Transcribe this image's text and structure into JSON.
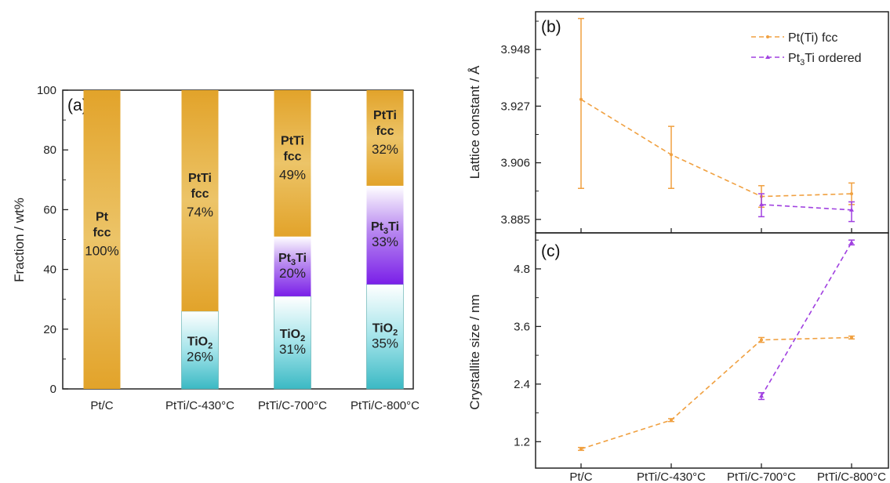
{
  "colors": {
    "pt_fcc": "#e6a82a",
    "pt3ti": "#8a2be2",
    "tio2": "#3bb9c4",
    "orange_line": "#f0a040",
    "purple_line": "#a040e0"
  },
  "chart_data": [
    {
      "panel": "(a)",
      "type": "bar",
      "stacked": true,
      "ylabel": "Fraction / wt%",
      "ylim": [
        0,
        100
      ],
      "yticks": [
        "0",
        "20",
        "40",
        "60",
        "80",
        "100"
      ],
      "categories": [
        "Pt/C",
        "PtTi/C-430°C",
        "PtTi/C-700°C",
        "PtTi/C-800°C"
      ],
      "series": [
        {
          "key": "tio2",
          "label_main": "TiO",
          "label_sub": "2",
          "values": [
            0,
            26,
            31,
            35
          ],
          "labels": [
            "",
            "26%",
            "31%",
            "35%"
          ]
        },
        {
          "key": "pt3ti",
          "label_main": "Pt",
          "label_sub": "3",
          "label_tail": "Ti",
          "values": [
            0,
            0,
            20,
            33
          ],
          "labels": [
            "",
            "",
            "20%",
            "33%"
          ]
        },
        {
          "key": "pt_fcc",
          "values": [
            100,
            74,
            49,
            32
          ],
          "labels": [
            "100%",
            "74%",
            "49%",
            "32%"
          ],
          "names": [
            "Pt fcc",
            "PtTi fcc",
            "PtTi fcc",
            "PtTi fcc"
          ]
        }
      ]
    },
    {
      "panel": "(b)",
      "type": "line",
      "ylabel": "Lattice constant / Å",
      "ylim": [
        3.88,
        3.962
      ],
      "yticks": [
        "3.885",
        "3.906",
        "3.927",
        "3.948"
      ],
      "categories": [
        "Pt/C",
        "PtTi/C-430°C",
        "PtTi/C-700°C",
        "PtTi/C-800°C"
      ],
      "series": [
        {
          "name": "Pt(Ti) fcc",
          "values": [
            3.9295,
            3.909,
            3.8935,
            3.8945
          ],
          "err_low": [
            3.8965,
            3.8965,
            3.8895,
            3.8905
          ],
          "err_high": [
            3.9595,
            3.9195,
            3.8975,
            3.8985
          ]
        },
        {
          "name_main": "Pt",
          "name_sub": "3",
          "name_tail": "Ti ordered",
          "values": [
            null,
            null,
            3.8905,
            3.8885
          ],
          "err_low": [
            null,
            null,
            3.886,
            3.8842
          ],
          "err_high": [
            null,
            null,
            3.8945,
            3.8915
          ]
        }
      ]
    },
    {
      "panel": "(c)",
      "type": "line",
      "ylabel": "Crystallite size / nm",
      "xlabel": "",
      "ylim": [
        0.65,
        5.55
      ],
      "yticks": [
        "1.2",
        "2.4",
        "3.6",
        "4.8"
      ],
      "categories": [
        "Pt/C",
        "PtTi/C-430°C",
        "PtTi/C-700°C",
        "PtTi/C-800°C"
      ],
      "series": [
        {
          "name": "Pt(Ti) fcc",
          "values": [
            1.05,
            1.65,
            3.32,
            3.37
          ],
          "err": [
            0.03,
            0.03,
            0.05,
            0.03
          ]
        },
        {
          "name": "Pt3Ti ordered",
          "values": [
            null,
            null,
            2.15,
            5.35
          ],
          "err": [
            null,
            null,
            0.07,
            0.05
          ]
        }
      ]
    }
  ]
}
